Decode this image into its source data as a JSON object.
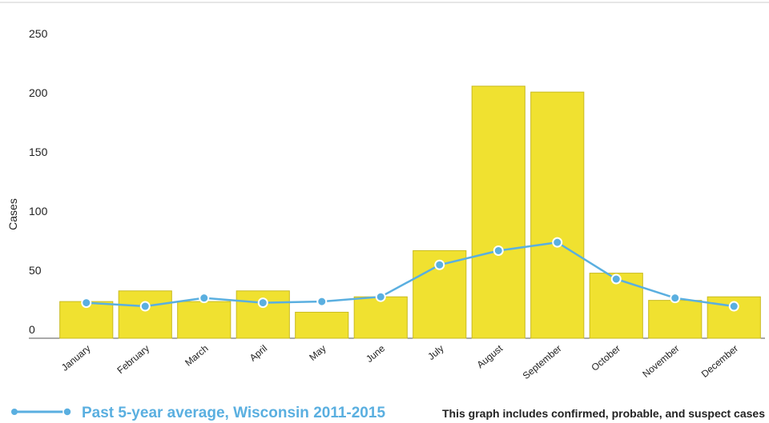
{
  "chart_data": {
    "type": "bar_line",
    "y_label": "Cases",
    "categories": [
      "January",
      "February",
      "March",
      "April",
      "May",
      "June",
      "July",
      "August",
      "September",
      "October",
      "November",
      "December"
    ],
    "ylim": [
      0,
      250
    ],
    "yticks": [
      0,
      50,
      100,
      150,
      200,
      250
    ],
    "series": [
      {
        "type": "bar",
        "color": "#f0e130",
        "values": [
          31,
          40,
          31,
          40,
          22,
          35,
          74,
          213,
          208,
          55,
          32,
          35
        ]
      },
      {
        "type": "line",
        "name": "Past 5-year average, Wisconsin 2011-2015",
        "color": "#5aafe0",
        "values": [
          30,
          27,
          34,
          30,
          31,
          35,
          62,
          74,
          81,
          50,
          34,
          27
        ]
      }
    ],
    "note": "This graph includes confirmed, probable, and suspect cases"
  }
}
